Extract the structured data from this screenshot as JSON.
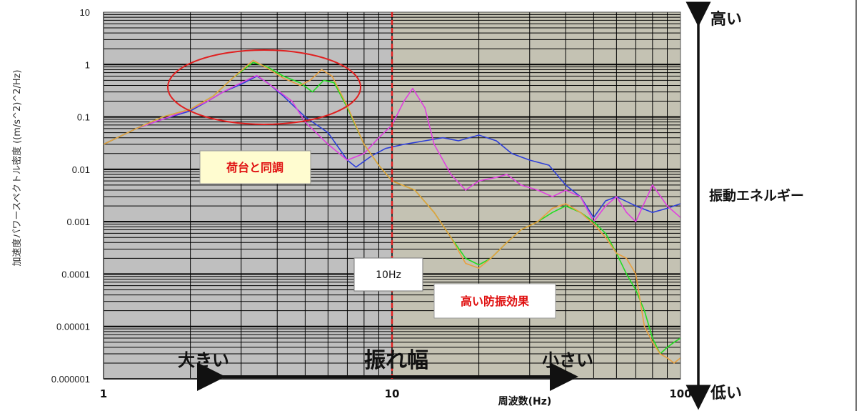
{
  "chart_data": {
    "type": "line",
    "title": "",
    "xlabel": "周波数(Hz)",
    "ylabel": "加速度パワースペクトル密度 ((m/s^2)^2/Hz)",
    "xscale": "log",
    "yscale": "log",
    "xlim": [
      1,
      100
    ],
    "ylim": [
      1e-06,
      10
    ],
    "grid": true,
    "x_ticks": [
      "1",
      "10",
      "100"
    ],
    "y_ticks": [
      "10",
      "1",
      "0.1",
      "0.01",
      "0.001",
      "0.0001",
      "0.00001",
      "0.000001"
    ],
    "colors": {
      "low_band_bg": "#bfbfbf",
      "high_band_bg": "#c4c2b3",
      "divider": "#e02020",
      "ellipse": "#e02020"
    },
    "series": [
      {
        "color": "#2e3fd8",
        "points": [
          [
            1,
            0.03
          ],
          [
            1.3,
            0.06
          ],
          [
            1.6,
            0.09
          ],
          [
            2,
            0.13
          ],
          [
            2.3,
            0.2
          ],
          [
            2.6,
            0.3
          ],
          [
            3,
            0.42
          ],
          [
            3.4,
            0.6
          ],
          [
            3.7,
            0.45
          ],
          [
            4.2,
            0.25
          ],
          [
            5,
            0.1
          ],
          [
            6,
            0.05
          ],
          [
            7,
            0.015
          ],
          [
            7.5,
            0.011
          ],
          [
            8.5,
            0.018
          ],
          [
            9.5,
            0.025
          ],
          [
            11,
            0.03
          ],
          [
            13,
            0.035
          ],
          [
            15,
            0.04
          ],
          [
            17,
            0.035
          ],
          [
            20,
            0.045
          ],
          [
            23,
            0.035
          ],
          [
            26,
            0.02
          ],
          [
            30,
            0.015
          ],
          [
            35,
            0.012
          ],
          [
            40,
            0.005
          ],
          [
            45,
            0.003
          ],
          [
            50,
            0.0012
          ],
          [
            55,
            0.0025
          ],
          [
            60,
            0.003
          ],
          [
            70,
            0.002
          ],
          [
            80,
            0.0015
          ],
          [
            90,
            0.0018
          ],
          [
            100,
            0.0022
          ]
        ]
      },
      {
        "color": "#e040e0",
        "points": [
          [
            1,
            0.03
          ],
          [
            1.3,
            0.06
          ],
          [
            1.6,
            0.09
          ],
          [
            2,
            0.14
          ],
          [
            2.3,
            0.2
          ],
          [
            2.6,
            0.3
          ],
          [
            3,
            0.45
          ],
          [
            3.4,
            0.62
          ],
          [
            3.8,
            0.4
          ],
          [
            4.5,
            0.2
          ],
          [
            5,
            0.08
          ],
          [
            6,
            0.03
          ],
          [
            7,
            0.015
          ],
          [
            8,
            0.02
          ],
          [
            9,
            0.04
          ],
          [
            10,
            0.07
          ],
          [
            11,
            0.2
          ],
          [
            11.8,
            0.35
          ],
          [
            13,
            0.15
          ],
          [
            14,
            0.03
          ],
          [
            16,
            0.008
          ],
          [
            18,
            0.004
          ],
          [
            20,
            0.006
          ],
          [
            23,
            0.007
          ],
          [
            25,
            0.008
          ],
          [
            28,
            0.005
          ],
          [
            32,
            0.004
          ],
          [
            36,
            0.003
          ],
          [
            40,
            0.004
          ],
          [
            45,
            0.003
          ],
          [
            50,
            0.001
          ],
          [
            55,
            0.002
          ],
          [
            60,
            0.003
          ],
          [
            65,
            0.0015
          ],
          [
            70,
            0.001
          ],
          [
            80,
            0.005
          ],
          [
            90,
            0.002
          ],
          [
            100,
            0.0012
          ]
        ]
      },
      {
        "color": "#22dd22",
        "points": [
          [
            1,
            0.03
          ],
          [
            1.3,
            0.06
          ],
          [
            1.6,
            0.1
          ],
          [
            2,
            0.14
          ],
          [
            2.4,
            0.25
          ],
          [
            2.8,
            0.55
          ],
          [
            3.3,
            1.1
          ],
          [
            3.7,
            0.9
          ],
          [
            4.2,
            0.6
          ],
          [
            4.8,
            0.45
          ],
          [
            5.3,
            0.3
          ],
          [
            5.8,
            0.5
          ],
          [
            6.3,
            0.45
          ],
          [
            7,
            0.15
          ],
          [
            8,
            0.03
          ],
          [
            9,
            0.012
          ],
          [
            10,
            0.006
          ],
          [
            12,
            0.004
          ],
          [
            14,
            0.0015
          ],
          [
            16,
            0.0005
          ],
          [
            18,
            0.0002
          ],
          [
            20,
            0.00015
          ],
          [
            22,
            0.0002
          ],
          [
            25,
            0.0004
          ],
          [
            28,
            0.0007
          ],
          [
            32,
            0.001
          ],
          [
            36,
            0.0015
          ],
          [
            40,
            0.002
          ],
          [
            45,
            0.0015
          ],
          [
            50,
            0.001
          ],
          [
            55,
            0.0006
          ],
          [
            60,
            0.00025
          ],
          [
            65,
            0.0001
          ],
          [
            70,
            5e-05
          ],
          [
            75,
            2e-05
          ],
          [
            80,
            6e-06
          ],
          [
            85,
            3e-06
          ],
          [
            90,
            4e-06
          ],
          [
            95,
            5e-06
          ],
          [
            100,
            6e-06
          ]
        ]
      },
      {
        "color": "#e8a040",
        "points": [
          [
            1,
            0.03
          ],
          [
            1.3,
            0.06
          ],
          [
            1.6,
            0.1
          ],
          [
            2,
            0.14
          ],
          [
            2.4,
            0.25
          ],
          [
            2.8,
            0.55
          ],
          [
            3.3,
            1.2
          ],
          [
            3.7,
            0.85
          ],
          [
            4.2,
            0.55
          ],
          [
            4.8,
            0.4
          ],
          [
            5.2,
            0.5
          ],
          [
            5.7,
            0.8
          ],
          [
            6.2,
            0.6
          ],
          [
            7,
            0.16
          ],
          [
            8,
            0.03
          ],
          [
            9,
            0.012
          ],
          [
            10,
            0.006
          ],
          [
            12,
            0.004
          ],
          [
            14,
            0.0015
          ],
          [
            16,
            0.0005
          ],
          [
            18,
            0.00016
          ],
          [
            20,
            0.00013
          ],
          [
            22,
            0.0002
          ],
          [
            25,
            0.0004
          ],
          [
            28,
            0.0007
          ],
          [
            32,
            0.001
          ],
          [
            36,
            0.0018
          ],
          [
            40,
            0.0022
          ],
          [
            45,
            0.0015
          ],
          [
            50,
            0.0009
          ],
          [
            55,
            0.0005
          ],
          [
            60,
            0.00025
          ],
          [
            65,
            0.0002
          ],
          [
            70,
            0.0001
          ],
          [
            75,
            1e-05
          ],
          [
            80,
            5e-06
          ],
          [
            85,
            3e-06
          ],
          [
            90,
            2.5e-06
          ],
          [
            95,
            2e-06
          ],
          [
            100,
            2.5e-06
          ]
        ]
      }
    ]
  },
  "annotations": {
    "resonance": "荷台と同調",
    "divider_label": "10Hz",
    "high_effect": "高い防振効果",
    "amp_large": "大きい",
    "amp_title": "振れ幅",
    "amp_small": "小さい",
    "energy_high": "高い",
    "energy_title": "振動エネルギー",
    "energy_low": "低い"
  }
}
